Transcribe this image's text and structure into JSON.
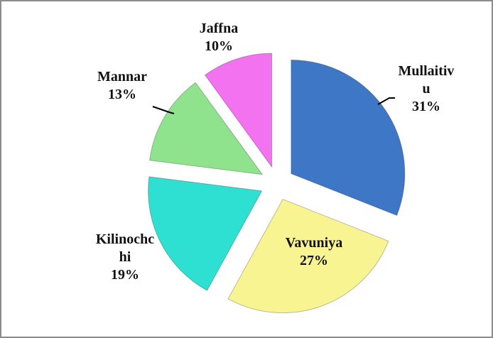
{
  "chart_data": {
    "type": "pie",
    "categories": [
      "Mullaitivu",
      "Vavuniya",
      "Kilinochchi",
      "Mannar",
      "Jaffna"
    ],
    "values": [
      31,
      27,
      19,
      13,
      10
    ],
    "value_labels": [
      "31%",
      "27%",
      "19%",
      "13%",
      "10%"
    ],
    "colors": [
      "#3d77c6",
      "#f8f491",
      "#2ee0d2",
      "#8fe38c",
      "#f272ef"
    ]
  }
}
